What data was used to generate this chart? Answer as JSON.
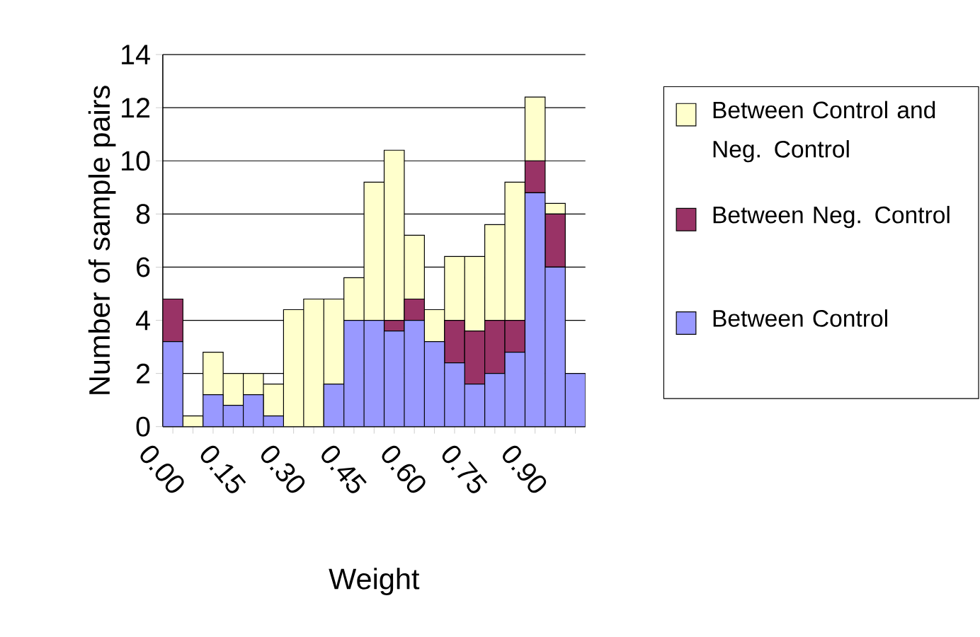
{
  "chart_data": {
    "type": "bar",
    "stacked": true,
    "xlabel": "Weight",
    "ylabel": "Number of sample pairs",
    "categories": [
      "0.00",
      null,
      null,
      "0.15",
      null,
      null,
      "0.30",
      null,
      null,
      "0.45",
      null,
      null,
      "0.60",
      null,
      null,
      "0.75",
      null,
      null,
      "0.90",
      null,
      null
    ],
    "series": [
      {
        "name": "Between Control",
        "color": "#9999ff",
        "values": [
          3.2,
          0,
          1.2,
          0.8,
          1.2,
          0.4,
          0,
          0,
          1.6,
          4.0,
          4.0,
          3.6,
          4.0,
          3.2,
          2.4,
          1.6,
          2.0,
          2.8,
          8.8,
          6.0,
          2.0
        ]
      },
      {
        "name": "Between Neg. Control",
        "color": "#993366",
        "values": [
          1.6,
          0,
          0,
          0,
          0,
          0,
          0,
          0,
          0,
          0,
          0,
          0.4,
          0.8,
          0,
          1.6,
          2.0,
          2.0,
          1.2,
          1.2,
          2.0,
          0
        ]
      },
      {
        "name": "Between Control and Neg. Control",
        "color": "#ffffcc",
        "values": [
          0,
          0.4,
          1.6,
          1.2,
          0.8,
          1.2,
          4.4,
          4.8,
          3.2,
          1.6,
          5.2,
          6.4,
          2.4,
          1.2,
          2.4,
          2.8,
          3.6,
          5.2,
          2.4,
          0.4,
          0
        ]
      }
    ],
    "ylim": [
      0,
      14
    ],
    "yticks": [
      0,
      2,
      4,
      6,
      8,
      10,
      12,
      14
    ],
    "grid": "y",
    "legend": "right"
  }
}
